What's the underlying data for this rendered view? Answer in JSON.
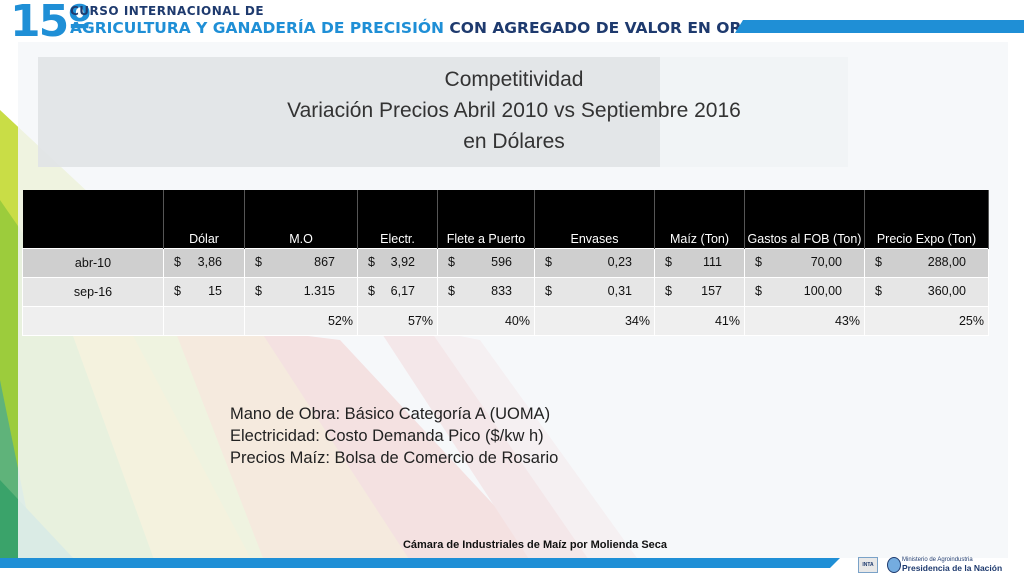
{
  "header": {
    "number": "15º",
    "line1": "CURSO INTERNACIONAL DE",
    "line2_part1": "AGRICULTURA Y GANADERÍA DE PRECISIÓN",
    "line2_part2": " CON AGREGADO DE VALOR EN ORIGEN"
  },
  "title": {
    "line1": "Competitividad",
    "line2": "Variación Precios Abril 2010 vs Septiembre 2016",
    "line3": "en Dólares"
  },
  "table": {
    "headers": [
      "",
      "Dólar",
      "M.O",
      "Electr.",
      "Flete a Puerto",
      "Envases",
      "Maíz (Ton)",
      "Gastos al FOB (Ton)",
      "Precio Expo (Ton)"
    ],
    "rows": [
      {
        "label": "abr-10",
        "cells": [
          {
            "cur": "$",
            "num": "3,86"
          },
          {
            "cur": "$",
            "num": "867"
          },
          {
            "cur": "$",
            "num": "3,92"
          },
          {
            "cur": "$",
            "num": "596"
          },
          {
            "cur": "$",
            "num": "0,23"
          },
          {
            "cur": "$",
            "num": "111"
          },
          {
            "cur": "$",
            "num": "70,00"
          },
          {
            "cur": "$",
            "num": "288,00"
          }
        ]
      },
      {
        "label": "sep-16",
        "cells": [
          {
            "cur": "$",
            "num": "15"
          },
          {
            "cur": "$",
            "num": "1.315"
          },
          {
            "cur": "$",
            "num": "6,17"
          },
          {
            "cur": "$",
            "num": "833"
          },
          {
            "cur": "$",
            "num": "0,31"
          },
          {
            "cur": "$",
            "num": "157"
          },
          {
            "cur": "$",
            "num": "100,00"
          },
          {
            "cur": "$",
            "num": "360,00"
          }
        ]
      }
    ],
    "percentages": [
      "",
      "",
      "52%",
      "57%",
      "40%",
      "34%",
      "41%",
      "43%",
      "25%"
    ]
  },
  "notes": [
    "Mano de Obra: Básico Categoría A (UOMA)",
    "Electricidad: Costo Demanda Pico ($/kw h)",
    "Precios Maíz: Bolsa de Comercio de Rosario"
  ],
  "footer": {
    "text": "Cámara de Industriales de Maíz por Molienda Seca",
    "inta": "INTA",
    "ministry_small": "Ministerio de Agroindustria",
    "ministry_big": "Presidencia de la Nación"
  },
  "colors": {
    "accent_blue": "#1f8fd6",
    "dark_navy": "#1e3a6e",
    "table_header": "#000000"
  }
}
